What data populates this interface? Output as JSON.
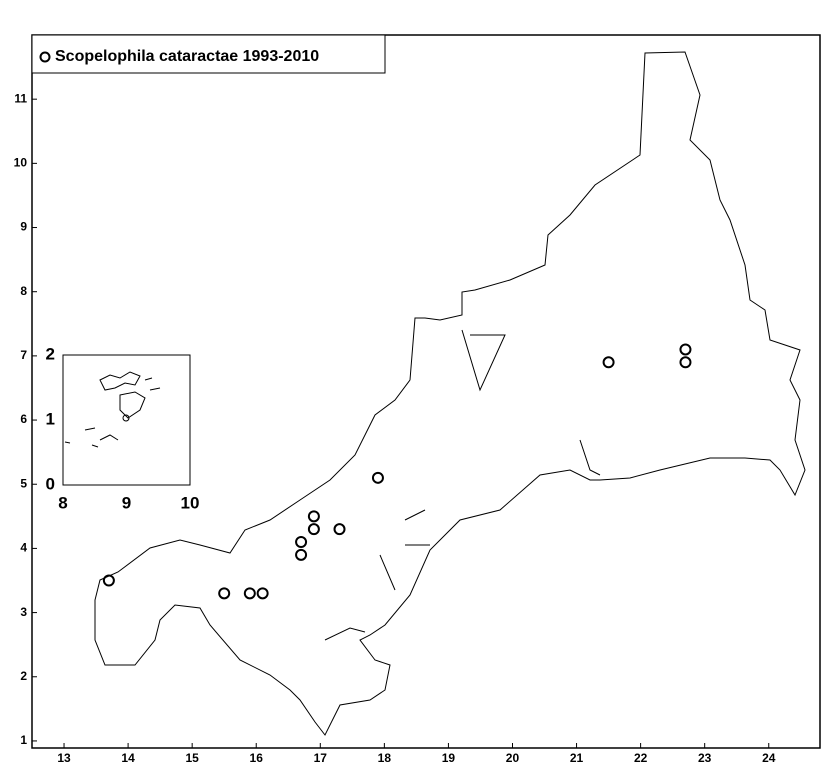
{
  "chart_data": [
    {
      "type": "scatter",
      "series": [
        {
          "name": "Scopelophila cataractae 1993-2010",
          "color": "#000000",
          "x": [
            13.7,
            15.5,
            15.9,
            16.1,
            16.7,
            16.7,
            16.9,
            16.9,
            17.3,
            17.9,
            21.5,
            22.7,
            22.7
          ],
          "values": [
            3.5,
            3.3,
            3.3,
            3.3,
            4.1,
            3.9,
            4.5,
            4.3,
            4.3,
            5.1,
            6.9,
            7.1,
            6.9
          ]
        }
      ],
      "xlim": [
        12.5,
        24.8
      ],
      "ylim": [
        0.89,
        12.0
      ],
      "xticks": [
        13,
        14,
        15,
        16,
        17,
        18,
        19,
        20,
        21,
        22,
        23,
        24
      ],
      "yticks": [
        1,
        2,
        3,
        4,
        5,
        6,
        7,
        8,
        9,
        10,
        11
      ],
      "legend": "upper left"
    },
    {
      "type": "inset",
      "xlim": [
        8,
        10
      ],
      "ylim": [
        0,
        2
      ],
      "xticks": [
        8,
        9,
        10
      ],
      "yticks": [
        0,
        1,
        2
      ]
    }
  ]
}
